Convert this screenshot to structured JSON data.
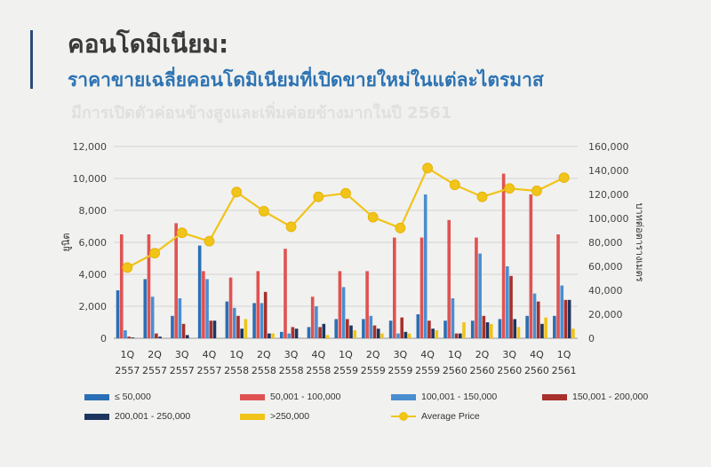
{
  "header": {
    "title": "คอนโดมิเนียม:",
    "subtitle": "ราคาขายเฉลี่ยคอนโดมิเนียมที่เปิดขายใหม่ในแต่ละไตรมาส",
    "faded_text": "มีการเปิดตัวค่อนข้างสูงและเพิ่มค่อยข้างมากในปี 2561"
  },
  "chart_data": {
    "type": "bar",
    "categories": [
      [
        "1Q",
        "2557"
      ],
      [
        "2Q",
        "2557"
      ],
      [
        "3Q",
        "2557"
      ],
      [
        "4Q",
        "2557"
      ],
      [
        "1Q",
        "2558"
      ],
      [
        "2Q",
        "2558"
      ],
      [
        "3Q",
        "2558"
      ],
      [
        "4Q",
        "2558"
      ],
      [
        "1Q",
        "2559"
      ],
      [
        "2Q",
        "2559"
      ],
      [
        "3Q",
        "2559"
      ],
      [
        "4Q",
        "2559"
      ],
      [
        "1Q",
        "2560"
      ],
      [
        "2Q",
        "2560"
      ],
      [
        "3Q",
        "2560"
      ],
      [
        "4Q",
        "2560"
      ],
      [
        "1Q",
        "2561"
      ]
    ],
    "y_left": {
      "ticks": [
        "0",
        "2,000",
        "4,000",
        "6,000",
        "8,000",
        "10,000",
        "12,000"
      ],
      "ylim": [
        0,
        12000
      ],
      "label": "ยูนิต"
    },
    "y_right": {
      "ticks": [
        "0",
        "20,000",
        "40,000",
        "60,000",
        "80,000",
        "100,000",
        "120,000",
        "140,000",
        "160,000"
      ],
      "ylim": [
        0,
        160000
      ],
      "label": "บาทต่อตารางเมตร"
    },
    "series": [
      {
        "name": "≤ 50,000",
        "color": "#2a6fb5",
        "values": [
          3000,
          3700,
          1400,
          5800,
          2300,
          2200,
          400,
          700,
          1200,
          1200,
          1100,
          1500,
          1100,
          1100,
          1200,
          1400,
          1400
        ]
      },
      {
        "name": "50,001 - 100,000",
        "color": "#e05252",
        "values": [
          6500,
          6500,
          7200,
          4200,
          3800,
          4200,
          5600,
          2600,
          4200,
          4200,
          6300,
          6300,
          7400,
          6300,
          10300,
          9000,
          6500
        ]
      },
      {
        "name": "100,001 - 150,000",
        "color": "#4a8ed0",
        "values": [
          500,
          2600,
          2500,
          3700,
          1900,
          2200,
          300,
          2000,
          3200,
          1400,
          300,
          9000,
          2500,
          5300,
          4500,
          2800,
          3300
        ]
      },
      {
        "name": "150,001 - 200,000",
        "color": "#a8302b",
        "values": [
          100,
          300,
          900,
          1100,
          1400,
          2900,
          700,
          700,
          1200,
          800,
          1300,
          1100,
          300,
          1400,
          3900,
          2300,
          2400
        ]
      },
      {
        "name": "200,001 - 250,000",
        "color": "#1e3560",
        "values": [
          50,
          100,
          200,
          1100,
          600,
          300,
          600,
          900,
          800,
          600,
          400,
          600,
          300,
          1000,
          1200,
          900,
          2400
        ]
      },
      {
        "name": ">250,000",
        "color": "#f0c419",
        "values": [
          0,
          0,
          0,
          0,
          1200,
          300,
          0,
          200,
          500,
          300,
          300,
          500,
          1000,
          900,
          700,
          1300,
          600
        ]
      }
    ],
    "line": {
      "name": "Average Price",
      "color": "#f0c419",
      "values": [
        59000,
        71000,
        88000,
        81000,
        122000,
        106000,
        93000,
        118000,
        121000,
        101000,
        92000,
        142000,
        128000,
        118000,
        125000,
        123000,
        134000
      ]
    },
    "grid": true,
    "legend_position": "bottom"
  }
}
